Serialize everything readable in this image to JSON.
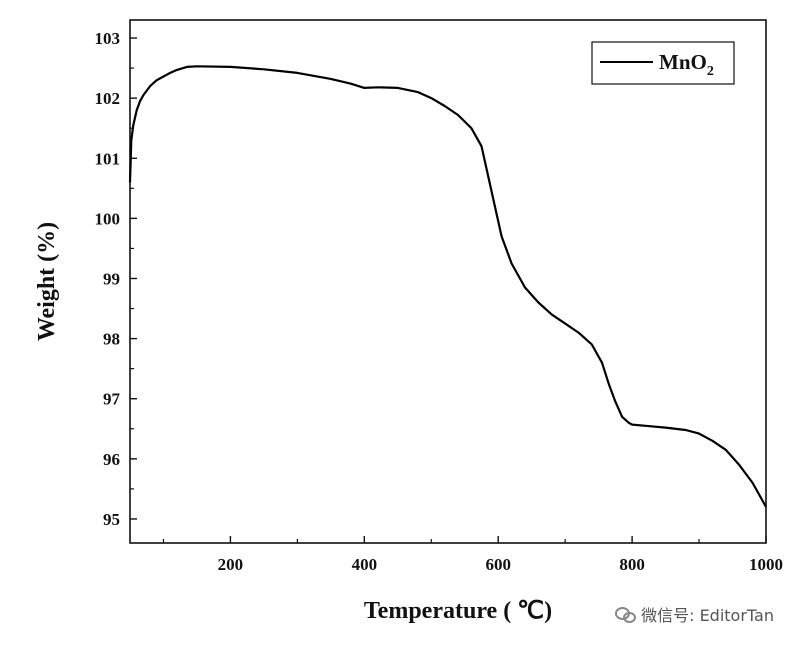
{
  "chart_data": {
    "type": "line",
    "xlabel": "Temperature ( ℃)",
    "ylabel": "Weight (%)",
    "xlim": [
      50,
      1000
    ],
    "ylim": [
      94.6,
      103.3
    ],
    "xticks": [
      200,
      400,
      600,
      800,
      1000
    ],
    "yticks": [
      95,
      96,
      97,
      98,
      99,
      100,
      101,
      102,
      103
    ],
    "grid": false,
    "legend_position": "top-right",
    "series": [
      {
        "name": "MnO2",
        "legend_main": "MnO",
        "legend_sub": "2",
        "color": "#000000",
        "x": [
          50,
          52,
          55,
          60,
          65,
          70,
          80,
          90,
          100,
          110,
          120,
          135,
          150,
          200,
          250,
          300,
          350,
          380,
          400,
          420,
          450,
          480,
          500,
          520,
          540,
          560,
          575,
          585,
          595,
          605,
          620,
          640,
          660,
          680,
          700,
          720,
          740,
          755,
          765,
          775,
          785,
          795,
          800,
          820,
          850,
          880,
          900,
          920,
          940,
          960,
          980,
          1000
        ],
        "y": [
          100.6,
          101.3,
          101.55,
          101.8,
          101.95,
          102.05,
          102.2,
          102.3,
          102.36,
          102.42,
          102.47,
          102.52,
          102.53,
          102.52,
          102.48,
          102.42,
          102.32,
          102.24,
          102.17,
          102.18,
          102.17,
          102.1,
          102.0,
          101.87,
          101.72,
          101.5,
          101.2,
          100.7,
          100.2,
          99.7,
          99.25,
          98.85,
          98.6,
          98.4,
          98.25,
          98.1,
          97.9,
          97.6,
          97.25,
          96.95,
          96.7,
          96.6,
          96.57,
          96.55,
          96.52,
          96.48,
          96.42,
          96.3,
          96.15,
          95.9,
          95.6,
          95.2
        ]
      }
    ]
  },
  "watermark": {
    "text": "微信号: EditorTan",
    "icon": "wechat-icon"
  }
}
